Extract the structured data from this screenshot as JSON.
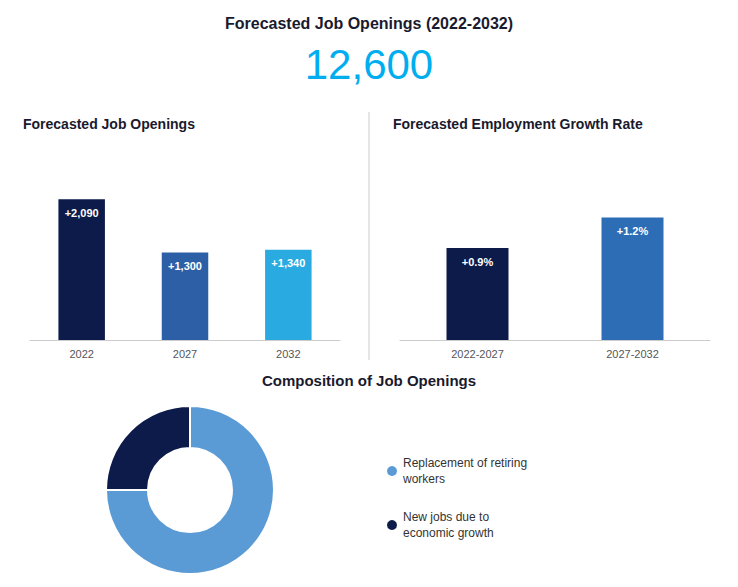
{
  "title": "Forecasted Job Openings (2022-2032)",
  "annotations": [
    {
      "text": "12,600",
      "color": "#00AEEF"
    }
  ],
  "chart_data": [
    {
      "type": "bar",
      "title": "Forecasted Job Openings",
      "categories": [
        "2022",
        "2027",
        "2032"
      ],
      "values": [
        2090,
        1300,
        1340
      ],
      "value_labels": [
        "+2,090",
        "+1,300",
        "+1,340"
      ],
      "colors": [
        "#0d1b4b",
        "#2d5fa6",
        "#29abe2"
      ],
      "ylim": [
        0,
        2821.5
      ],
      "grid": false,
      "data_labels": true,
      "tick_labels": "x"
    },
    {
      "type": "bar",
      "title": "Forecasted Employment Growth Rate",
      "categories": [
        "2022-2027",
        "2027-2032"
      ],
      "values": [
        0.9,
        1.2
      ],
      "value_labels": [
        "+0.9%",
        "+1.2%"
      ],
      "colors": [
        "#0d1b4b",
        "#2d6db5"
      ],
      "ylim": [
        0,
        1.86
      ],
      "grid": false,
      "data_labels": true,
      "tick_labels": "x"
    },
    {
      "type": "pie",
      "title": "Composition of Job Openings",
      "categories": [
        "Replacement of retiring\nworkers",
        "New jobs due to\neconomic growth"
      ],
      "values": [
        75,
        25
      ],
      "colors": [
        "#5b9bd5",
        "#0d1b4b"
      ],
      "legend": "right",
      "data_labels": false
    }
  ]
}
